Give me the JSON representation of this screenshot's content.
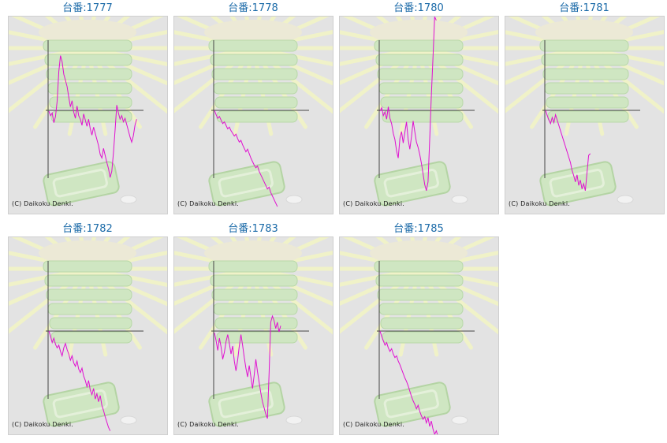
{
  "chart_data": [
    {
      "type": "line",
      "title": "台番:1777",
      "color": "#e010d0",
      "copyright": "(C) Daikoku Denki.",
      "series": [
        {
          "values": [
            -400,
            -2400,
            -1200,
            -5600,
            -2800,
            4200,
            17600,
            24800,
            22000,
            16400,
            13600,
            10800,
            6000,
            1600,
            4400,
            -800,
            -3600,
            2000,
            -2400,
            -4000,
            -6800,
            -1600,
            -4400,
            -7200,
            -4000,
            -8400,
            -11200,
            -7600,
            -10400,
            -13200,
            -16000,
            -20000,
            -21600,
            -17200,
            -20400,
            -23600,
            -26400,
            -30400,
            -27600,
            -19200,
            -8800,
            2400,
            -1200,
            -4000,
            -2400,
            -5200,
            -3600,
            -6400,
            -9200,
            -12000,
            -14400,
            -11600,
            -6800,
            -4000
          ]
        }
      ]
    },
    {
      "type": "line",
      "title": "台番:1778",
      "color": "#e010d0",
      "copyright": "(C) Daikoku Denki.",
      "series": [
        {
          "values": [
            0,
            -2000,
            -3600,
            -2800,
            -4400,
            -6000,
            -5200,
            -6800,
            -8400,
            -7600,
            -9200,
            -10400,
            -11600,
            -10800,
            -12800,
            -14400,
            -13600,
            -15600,
            -17200,
            -18800,
            -17600,
            -19600,
            -21600,
            -23200,
            -24800,
            -26000,
            -25200,
            -27600,
            -29200,
            -30800,
            -32400,
            -34000,
            -35600,
            -34800,
            -37200,
            -38800,
            -40400,
            -42000,
            -43600
          ]
        }
      ]
    },
    {
      "type": "line",
      "title": "台番:1780",
      "color": "#e010d0",
      "copyright": "(C) Daikoku Denki.",
      "series": [
        {
          "values": [
            -400,
            1200,
            -2400,
            -800,
            -4000,
            1600,
            -3600,
            -6000,
            -10400,
            -13200,
            -18400,
            -21600,
            -12800,
            -9600,
            -14800,
            -10000,
            -5200,
            -13200,
            -17600,
            -12000,
            -4800,
            -9600,
            -14400,
            -16800,
            -20000,
            -24000,
            -28800,
            -33600,
            -36400,
            -32400,
            -13200,
            6800,
            24000,
            42400,
            40800
          ]
        }
      ]
    },
    {
      "type": "line",
      "title": "台番:1781",
      "color": "#e010d0",
      "copyright": "(C) Daikoku Denki.",
      "series": [
        {
          "values": [
            0,
            -2400,
            -4400,
            -6000,
            -3200,
            -5600,
            -2000,
            -4400,
            -6800,
            -9200,
            -11600,
            -14000,
            -16400,
            -18800,
            -21200,
            -23600,
            -27200,
            -29600,
            -32400,
            -29200,
            -34000,
            -31600,
            -35600,
            -33200,
            -36400,
            -28400,
            -20400,
            -19600
          ]
        }
      ]
    },
    {
      "type": "line",
      "title": "台番:1782",
      "color": "#e010d0",
      "copyright": "(C) Daikoku Denki.",
      "series": [
        {
          "values": [
            0,
            -2400,
            -5200,
            -3200,
            -6000,
            -7600,
            -6400,
            -9200,
            -11200,
            -7600,
            -5600,
            -8400,
            -10400,
            -13200,
            -11200,
            -14400,
            -16000,
            -13600,
            -17200,
            -18800,
            -16800,
            -20400,
            -22400,
            -25200,
            -22400,
            -26800,
            -28800,
            -26000,
            -30800,
            -28400,
            -32000,
            -29200,
            -33600,
            -36000,
            -38800,
            -41200,
            -43600,
            -45200
          ]
        }
      ]
    },
    {
      "type": "line",
      "title": "台番:1783",
      "color": "#e010d0",
      "copyright": "(C) Daikoku Denki.",
      "series": [
        {
          "values": [
            -800,
            -4400,
            -8800,
            -3200,
            -7200,
            -12800,
            -9600,
            -4800,
            -1600,
            -5600,
            -10400,
            -6800,
            -13600,
            -18000,
            -13200,
            -6800,
            -1600,
            -6400,
            -12000,
            -16800,
            -20800,
            -15600,
            -20800,
            -26000,
            -20000,
            -12800,
            -18400,
            -23200,
            -28000,
            -32000,
            -34800,
            -37600,
            -39600,
            -19200,
            4000,
            6800,
            4800,
            1200,
            4000,
            -400,
            2400
          ]
        }
      ]
    },
    {
      "type": "line",
      "title": "台番:1785",
      "color": "#e010d0",
      "copyright": "(C) Daikoku Denki.",
      "series": [
        {
          "values": [
            0,
            -2400,
            -4400,
            -6400,
            -5200,
            -7600,
            -9200,
            -8000,
            -10400,
            -12000,
            -11200,
            -13600,
            -15200,
            -17200,
            -19200,
            -21200,
            -22800,
            -24800,
            -27200,
            -29600,
            -31600,
            -33200,
            -35200,
            -33600,
            -36400,
            -38400,
            -40000,
            -38800,
            -41600,
            -39200,
            -43200,
            -40800,
            -44400,
            -46800,
            -45200,
            -47600,
            -49200,
            -48400
          ]
        }
      ]
    }
  ]
}
